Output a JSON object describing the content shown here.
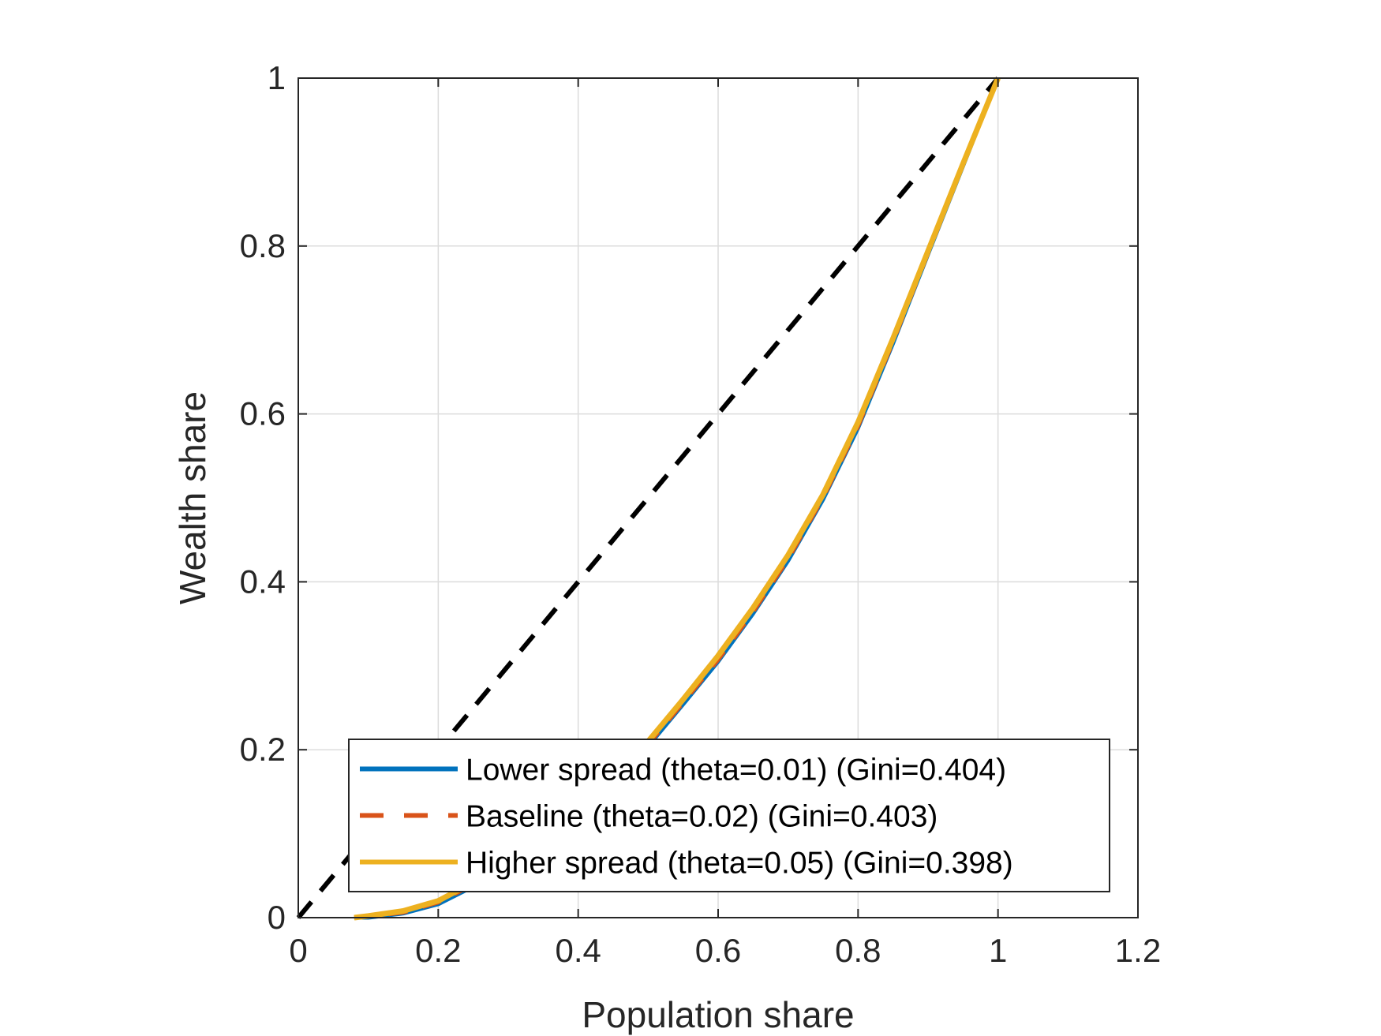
{
  "chart_data": {
    "type": "line",
    "title": "",
    "xlabel": "Population share",
    "ylabel": "Wealth share",
    "xlim": [
      0,
      1.2
    ],
    "ylim": [
      0,
      1
    ],
    "xticks": [
      0,
      0.2,
      0.4,
      0.6,
      0.8,
      1,
      1.2
    ],
    "yticks": [
      0,
      0.2,
      0.4,
      0.6,
      0.8,
      1
    ],
    "xtick_labels": [
      "0",
      "0.2",
      "0.4",
      "0.6",
      "0.8",
      "1",
      "1.2"
    ],
    "ytick_labels": [
      "0",
      "0.2",
      "0.4",
      "0.6",
      "0.8",
      "1"
    ],
    "grid": true,
    "legend_position": "bottom-right",
    "series": [
      {
        "name": "Lower spread (theta=0.01) (Gini=0.404)",
        "color": "#0072BD",
        "style": "solid",
        "x": [
          0.08,
          0.1,
          0.15,
          0.2,
          0.25,
          0.3,
          0.35,
          0.4,
          0.45,
          0.5,
          0.55,
          0.6,
          0.65,
          0.7,
          0.75,
          0.8,
          0.85,
          0.9,
          0.95,
          1.0
        ],
        "y": [
          0.0,
          0.0,
          0.005,
          0.016,
          0.037,
          0.062,
          0.09,
          0.122,
          0.16,
          0.204,
          0.254,
          0.305,
          0.362,
          0.425,
          0.498,
          0.583,
          0.684,
          0.79,
          0.895,
          1.0
        ]
      },
      {
        "name": "Baseline (theta=0.02) (Gini=0.403)",
        "color": "#D95319",
        "style": "dashed",
        "x": [
          0.08,
          0.1,
          0.15,
          0.2,
          0.25,
          0.3,
          0.35,
          0.4,
          0.45,
          0.5,
          0.55,
          0.6,
          0.65,
          0.7,
          0.75,
          0.8,
          0.85,
          0.9,
          0.95,
          1.0
        ],
        "y": [
          0.0,
          0.001,
          0.006,
          0.018,
          0.039,
          0.064,
          0.092,
          0.124,
          0.162,
          0.206,
          0.256,
          0.307,
          0.364,
          0.427,
          0.5,
          0.585,
          0.686,
          0.791,
          0.896,
          1.0
        ]
      },
      {
        "name": "Higher spread (theta=0.05) (Gini=0.398)",
        "color": "#EDB120",
        "style": "solid",
        "x": [
          0.08,
          0.1,
          0.15,
          0.2,
          0.25,
          0.3,
          0.35,
          0.4,
          0.45,
          0.5,
          0.55,
          0.6,
          0.65,
          0.7,
          0.75,
          0.8,
          0.85,
          0.9,
          0.95,
          1.0
        ],
        "y": [
          0.0,
          0.002,
          0.008,
          0.02,
          0.042,
          0.067,
          0.096,
          0.128,
          0.166,
          0.21,
          0.26,
          0.312,
          0.369,
          0.432,
          0.504,
          0.59,
          0.69,
          0.794,
          0.898,
          1.0
        ]
      },
      {
        "name": "",
        "color": "#000000",
        "style": "dashed",
        "x": [
          0,
          1
        ],
        "y": [
          0,
          1
        ]
      }
    ]
  }
}
